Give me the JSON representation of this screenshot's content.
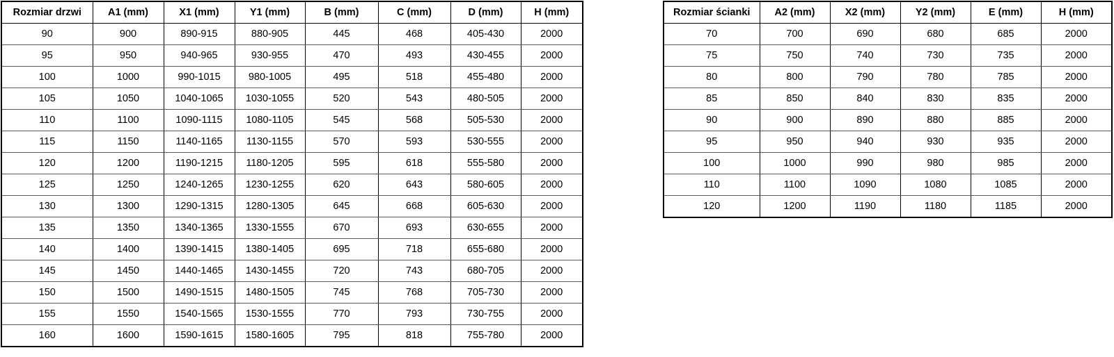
{
  "colors": {
    "background": "#ffffff",
    "border_outer": "#000000",
    "border_vertical": "#000000",
    "border_horizontal": "#595959",
    "text": "#000000"
  },
  "tables": {
    "doors": {
      "title": "door sizes table",
      "headers": [
        "Rozmiar drzwi",
        "A1 (mm)",
        "X1 (mm)",
        "Y1 (mm)",
        "B (mm)",
        "C (mm)",
        "D (mm)",
        "H (mm)"
      ],
      "rows": [
        [
          "90",
          "900",
          "890-915",
          "880-905",
          "445",
          "468",
          "405-430",
          "2000"
        ],
        [
          "95",
          "950",
          "940-965",
          "930-955",
          "470",
          "493",
          "430-455",
          "2000"
        ],
        [
          "100",
          "1000",
          "990-1015",
          "980-1005",
          "495",
          "518",
          "455-480",
          "2000"
        ],
        [
          "105",
          "1050",
          "1040-1065",
          "1030-1055",
          "520",
          "543",
          "480-505",
          "2000"
        ],
        [
          "110",
          "1100",
          "1090-1115",
          "1080-1105",
          "545",
          "568",
          "505-530",
          "2000"
        ],
        [
          "115",
          "1150",
          "1140-1165",
          "1130-1155",
          "570",
          "593",
          "530-555",
          "2000"
        ],
        [
          "120",
          "1200",
          "1190-1215",
          "1180-1205",
          "595",
          "618",
          "555-580",
          "2000"
        ],
        [
          "125",
          "1250",
          "1240-1265",
          "1230-1255",
          "620",
          "643",
          "580-605",
          "2000"
        ],
        [
          "130",
          "1300",
          "1290-1315",
          "1280-1305",
          "645",
          "668",
          "605-630",
          "2000"
        ],
        [
          "135",
          "1350",
          "1340-1365",
          "1330-1555",
          "670",
          "693",
          "630-655",
          "2000"
        ],
        [
          "140",
          "1400",
          "1390-1415",
          "1380-1405",
          "695",
          "718",
          "655-680",
          "2000"
        ],
        [
          "145",
          "1450",
          "1440-1465",
          "1430-1455",
          "720",
          "743",
          "680-705",
          "2000"
        ],
        [
          "150",
          "1500",
          "1490-1515",
          "1480-1505",
          "745",
          "768",
          "705-730",
          "2000"
        ],
        [
          "155",
          "1550",
          "1540-1565",
          "1530-1555",
          "770",
          "793",
          "730-755",
          "2000"
        ],
        [
          "160",
          "1600",
          "1590-1615",
          "1580-1605",
          "795",
          "818",
          "755-780",
          "2000"
        ]
      ]
    },
    "walls": {
      "title": "wall panel sizes table",
      "headers": [
        "Rozmiar ścianki",
        "A2 (mm)",
        "X2 (mm)",
        "Y2 (mm)",
        "E (mm)",
        "H (mm)"
      ],
      "rows": [
        [
          "70",
          "700",
          "690",
          "680",
          "685",
          "2000"
        ],
        [
          "75",
          "750",
          "740",
          "730",
          "735",
          "2000"
        ],
        [
          "80",
          "800",
          "790",
          "780",
          "785",
          "2000"
        ],
        [
          "85",
          "850",
          "840",
          "830",
          "835",
          "2000"
        ],
        [
          "90",
          "900",
          "890",
          "880",
          "885",
          "2000"
        ],
        [
          "95",
          "950",
          "940",
          "930",
          "935",
          "2000"
        ],
        [
          "100",
          "1000",
          "990",
          "980",
          "985",
          "2000"
        ],
        [
          "110",
          "1100",
          "1090",
          "1080",
          "1085",
          "2000"
        ],
        [
          "120",
          "1200",
          "1190",
          "1180",
          "1185",
          "2000"
        ]
      ]
    }
  }
}
